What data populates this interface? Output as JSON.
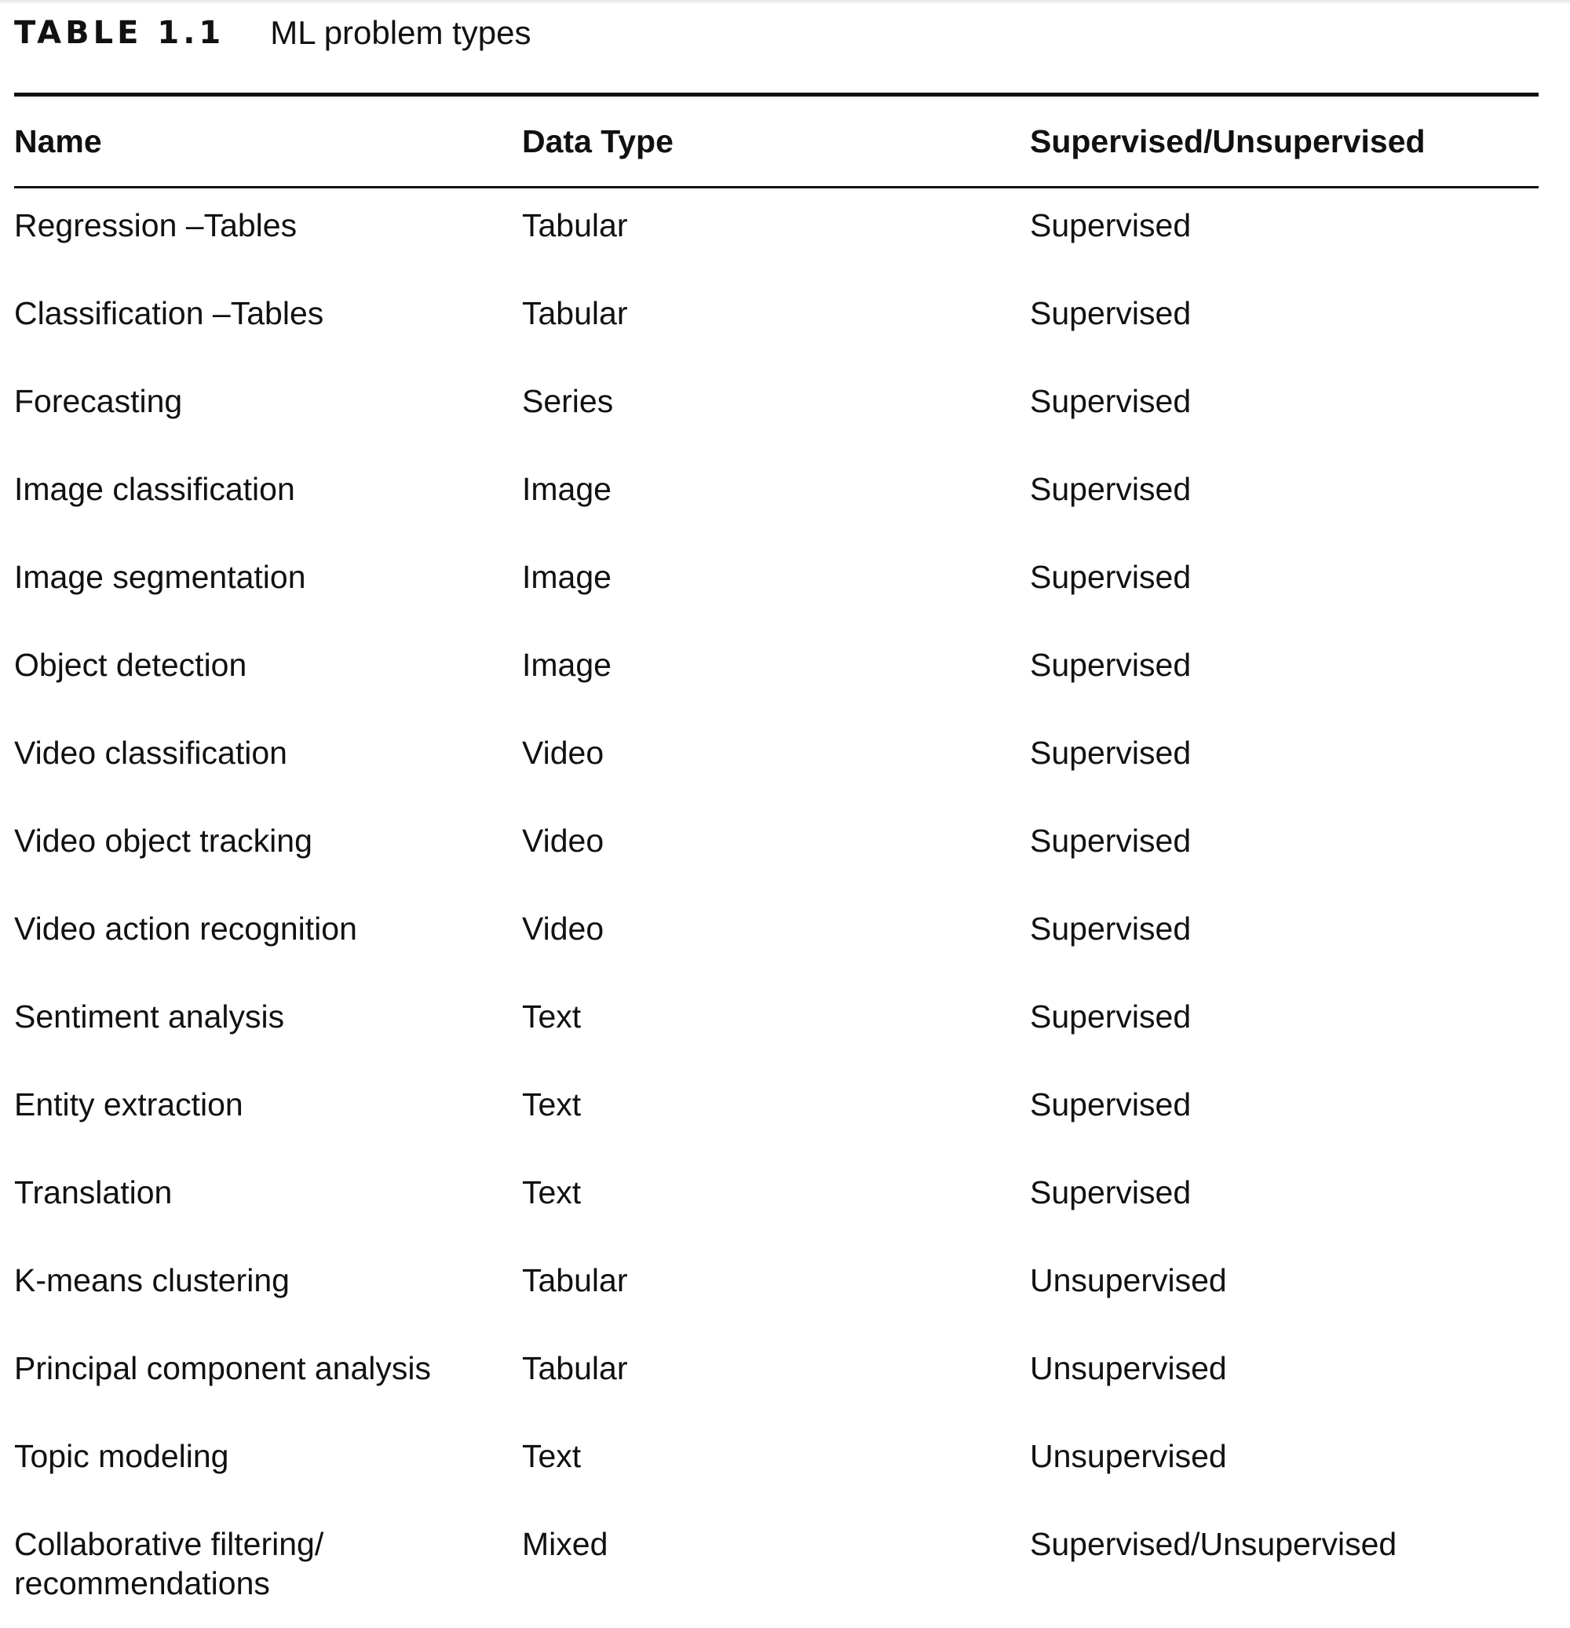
{
  "caption": {
    "label": "TABLE 1.1",
    "title": "ML problem types"
  },
  "table": {
    "headers": [
      "Name",
      "Data Type",
      "Supervised/Unsupervised"
    ],
    "rows": [
      {
        "name": "Regression –Tables",
        "data_type": "Tabular",
        "supervision": "Supervised"
      },
      {
        "name": "Classification –Tables",
        "data_type": "Tabular",
        "supervision": "Supervised"
      },
      {
        "name": "Forecasting",
        "data_type": "Series",
        "supervision": "Supervised"
      },
      {
        "name": "Image classification",
        "data_type": "Image",
        "supervision": "Supervised"
      },
      {
        "name": "Image segmentation",
        "data_type": "Image",
        "supervision": "Supervised"
      },
      {
        "name": "Object detection",
        "data_type": "Image",
        "supervision": "Supervised"
      },
      {
        "name": "Video classification",
        "data_type": "Video",
        "supervision": "Supervised"
      },
      {
        "name": "Video object tracking",
        "data_type": "Video",
        "supervision": "Supervised"
      },
      {
        "name": "Video action recognition",
        "data_type": "Video",
        "supervision": "Supervised"
      },
      {
        "name": "Sentiment analysis",
        "data_type": "Text",
        "supervision": "Supervised"
      },
      {
        "name": "Entity extraction",
        "data_type": "Text",
        "supervision": "Supervised"
      },
      {
        "name": "Translation",
        "data_type": "Text",
        "supervision": "Supervised"
      },
      {
        "name": "K-means clustering",
        "data_type": "Tabular",
        "supervision": "Unsupervised"
      },
      {
        "name": "Principal component analysis",
        "data_type": "Tabular",
        "supervision": "Unsupervised"
      },
      {
        "name": "Topic modeling",
        "data_type": "Text",
        "supervision": "Unsupervised"
      },
      {
        "name": "Collaborative filtering/ recommendations",
        "data_type": "Mixed",
        "supervision": "Supervised/Unsupervised"
      }
    ]
  }
}
